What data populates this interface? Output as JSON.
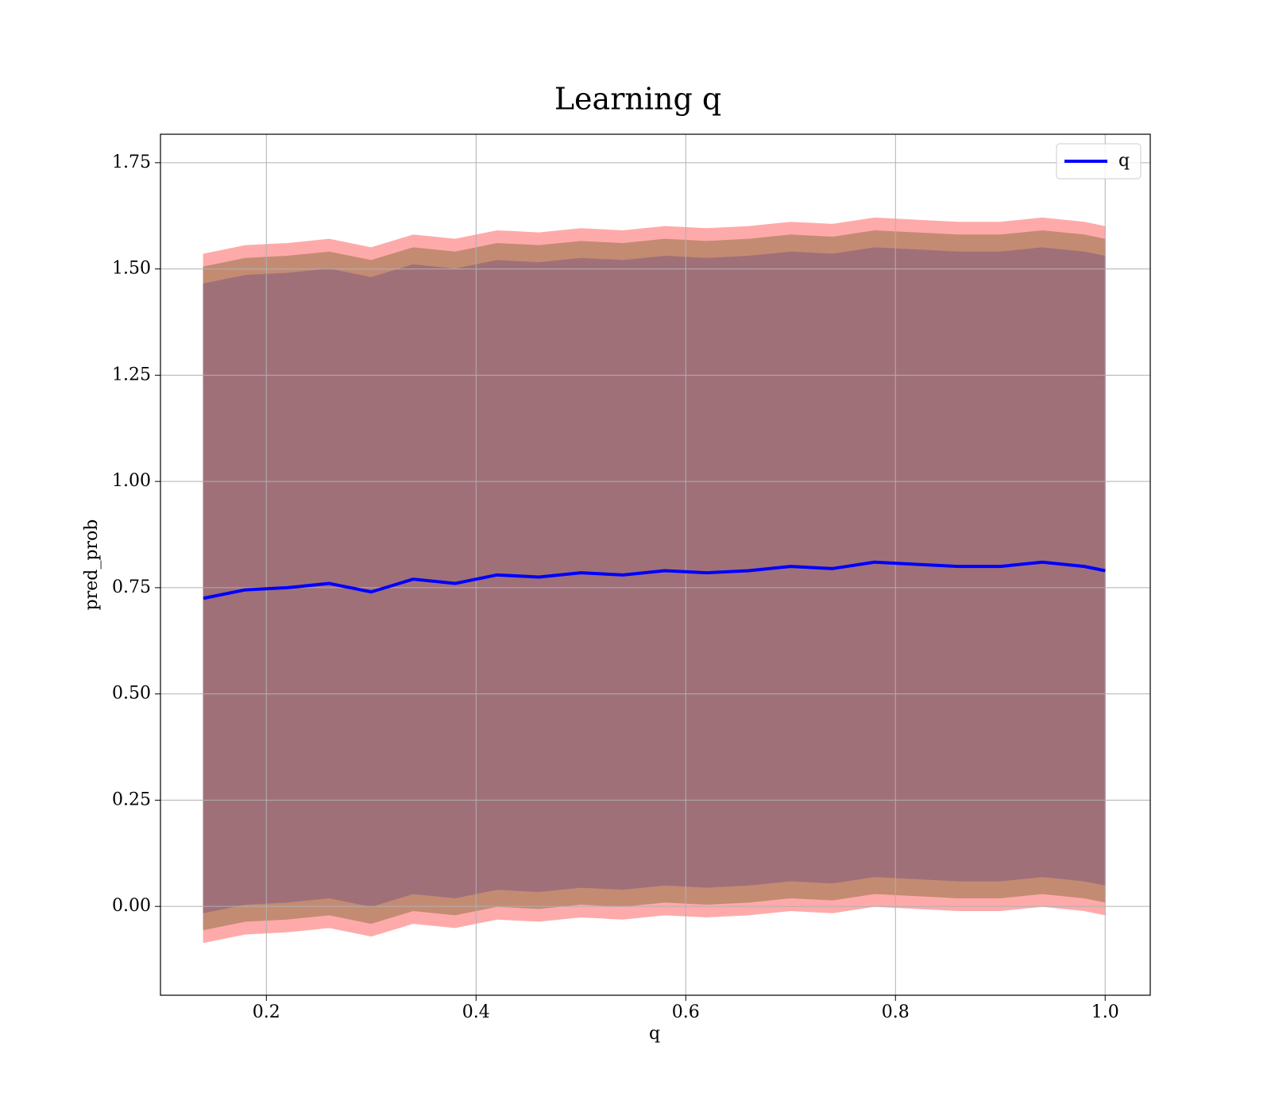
{
  "chart_data": {
    "type": "line",
    "title": "Learning q",
    "xlabel": "q",
    "ylabel": "pred_prob",
    "x": [
      0.14,
      0.18,
      0.22,
      0.26,
      0.3,
      0.34,
      0.38,
      0.42,
      0.46,
      0.5,
      0.54,
      0.58,
      0.62,
      0.66,
      0.7,
      0.74,
      0.78,
      0.82,
      0.86,
      0.9,
      0.94,
      0.98,
      1.0
    ],
    "series": [
      {
        "name": "q",
        "color": "#0000ff",
        "values": [
          0.725,
          0.745,
          0.75,
          0.76,
          0.74,
          0.77,
          0.76,
          0.78,
          0.775,
          0.785,
          0.78,
          0.79,
          0.785,
          0.79,
          0.8,
          0.795,
          0.81,
          0.805,
          0.8,
          0.8,
          0.81,
          0.8,
          0.79
        ]
      }
    ],
    "bands": [
      {
        "color": "#ffaaaa",
        "upper": [
          1.535,
          1.555,
          1.56,
          1.57,
          1.55,
          1.58,
          1.57,
          1.59,
          1.585,
          1.595,
          1.59,
          1.6,
          1.595,
          1.6,
          1.61,
          1.605,
          1.62,
          1.615,
          1.61,
          1.61,
          1.62,
          1.61,
          1.6
        ],
        "lower": [
          -0.085,
          -0.065,
          -0.06,
          -0.05,
          -0.07,
          -0.04,
          -0.05,
          -0.03,
          -0.035,
          -0.025,
          -0.03,
          -0.02,
          -0.025,
          -0.02,
          -0.01,
          -0.015,
          0.0,
          -0.005,
          -0.01,
          -0.01,
          0.0,
          -0.01,
          -0.02
        ]
      },
      {
        "color": "#c48b73",
        "upper": [
          1.505,
          1.525,
          1.53,
          1.54,
          1.52,
          1.55,
          1.54,
          1.56,
          1.555,
          1.565,
          1.56,
          1.57,
          1.565,
          1.57,
          1.58,
          1.575,
          1.59,
          1.585,
          1.58,
          1.58,
          1.59,
          1.58,
          1.57
        ],
        "lower": [
          -0.055,
          -0.035,
          -0.03,
          -0.02,
          -0.04,
          -0.01,
          -0.02,
          0.0,
          -0.005,
          0.005,
          0.0,
          0.01,
          0.005,
          0.01,
          0.02,
          0.015,
          0.03,
          0.025,
          0.02,
          0.02,
          0.03,
          0.02,
          0.01
        ]
      },
      {
        "color": "#a07079",
        "upper": [
          1.465,
          1.485,
          1.49,
          1.5,
          1.48,
          1.51,
          1.5,
          1.52,
          1.515,
          1.525,
          1.52,
          1.53,
          1.525,
          1.53,
          1.54,
          1.535,
          1.55,
          1.545,
          1.54,
          1.54,
          1.55,
          1.54,
          1.53
        ],
        "lower": [
          -0.015,
          0.005,
          0.01,
          0.02,
          0,
          0.03,
          0.02,
          0.04,
          0.035,
          0.045,
          0.04,
          0.05,
          0.045,
          0.05,
          0.06,
          0.055,
          0.07,
          0.065,
          0.06,
          0.06,
          0.07,
          0.06,
          0.05
        ]
      }
    ],
    "xlim": [
      0.099,
      1.043
    ],
    "ylim": [
      -0.209,
      1.817
    ],
    "xticks": [
      0.2,
      0.4,
      0.6,
      0.8,
      {
        "value": 1,
        "label": "1.0"
      }
    ],
    "yticks": [
      {
        "value": 0,
        "label": "0.00"
      },
      {
        "value": 0.25,
        "label": "0.25"
      },
      {
        "value": 0.5,
        "label": "0.50"
      },
      {
        "value": 0.75,
        "label": "0.75"
      },
      {
        "value": 1,
        "label": "1.00"
      },
      {
        "value": 1.25,
        "label": "1.25"
      },
      {
        "value": 1.5,
        "label": "1.50"
      },
      {
        "value": 1.75,
        "label": "1.75"
      }
    ],
    "grid": true,
    "legend": "upper right"
  }
}
